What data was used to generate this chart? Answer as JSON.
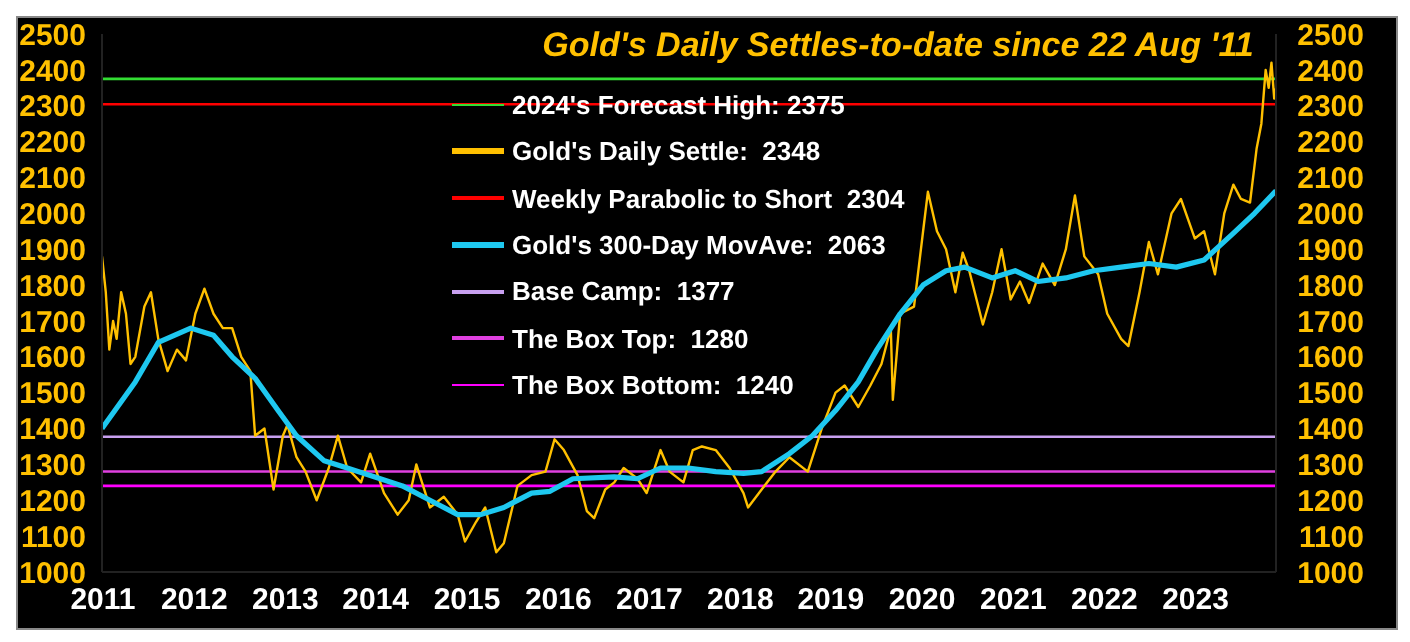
{
  "chart_data": {
    "type": "line",
    "title": "Gold's Daily Settles-to-date since 22 Aug '11",
    "xlim": [
      "2011-08-22",
      "2024-05-19"
    ],
    "xticks": [
      {
        "value": "2011-08-26",
        "label": "2011"
      },
      {
        "value": "2012-08-22",
        "label": "2012"
      },
      {
        "value": "2013-08-18",
        "label": "2013"
      },
      {
        "value": "2014-08-11",
        "label": "2014"
      },
      {
        "value": "2015-08-08",
        "label": "2015"
      },
      {
        "value": "2016-08-04",
        "label": "2016"
      },
      {
        "value": "2017-07-31",
        "label": "2017"
      },
      {
        "value": "2018-07-27",
        "label": "2018"
      },
      {
        "value": "2019-07-20",
        "label": "2019"
      },
      {
        "value": "2020-07-16",
        "label": "2020"
      },
      {
        "value": "2021-07-13",
        "label": "2021"
      },
      {
        "value": "2022-07-09",
        "label": "2022"
      },
      {
        "value": "2023-07-05",
        "label": "2023"
      }
    ],
    "ylim": [
      1000,
      2500
    ],
    "yticks": [
      1000,
      1100,
      1200,
      1300,
      1400,
      1500,
      1600,
      1700,
      1800,
      1900,
      2000,
      2100,
      2200,
      2300,
      2400,
      2500
    ],
    "y2lim": [
      1000,
      2500
    ],
    "y2ticks": [
      1000,
      1100,
      1200,
      1300,
      1400,
      1500,
      1600,
      1700,
      1800,
      1900,
      2000,
      2100,
      2200,
      2300,
      2400,
      2500
    ],
    "legend": "top",
    "grid": false,
    "series": [
      {
        "name": "Gold's Daily Settle:  2348",
        "color": "#ffc000",
        "x": [
          "2011-08-22",
          "2011-09-06",
          "2011-09-20",
          "2011-10-05",
          "2011-10-19",
          "2011-11-06",
          "2011-11-25",
          "2011-12-13",
          "2012-01-01",
          "2012-02-06",
          "2012-03-03",
          "2012-04-01",
          "2012-05-08",
          "2012-06-14",
          "2012-07-20",
          "2012-08-26",
          "2012-10-01",
          "2012-11-06",
          "2012-12-13",
          "2013-01-19",
          "2013-02-24",
          "2013-04-01",
          "2013-04-20",
          "2013-05-27",
          "2013-07-02",
          "2013-08-08",
          "2013-08-26",
          "2013-10-01",
          "2013-11-06",
          "2013-12-20",
          "2014-02-06",
          "2014-03-14",
          "2014-04-20",
          "2014-06-14",
          "2014-07-20",
          "2014-09-13",
          "2014-11-06",
          "2014-12-20",
          "2015-01-19",
          "2015-03-14",
          "2015-05-08",
          "2015-07-02",
          "2015-07-31",
          "2015-09-13",
          "2015-10-19",
          "2015-12-02",
          "2016-01-01",
          "2016-02-24",
          "2016-04-20",
          "2016-06-14",
          "2016-07-20",
          "2016-08-26",
          "2016-10-19",
          "2016-11-25",
          "2016-12-24",
          "2017-02-06",
          "2017-03-14",
          "2017-04-20",
          "2017-06-14",
          "2017-07-20",
          "2017-09-13",
          "2017-10-19",
          "2017-12-13",
          "2018-01-19",
          "2018-02-24",
          "2018-04-20",
          "2018-06-14",
          "2018-08-08",
          "2018-08-26",
          "2018-10-19",
          "2018-12-13",
          "2019-02-06",
          "2019-04-20",
          "2019-06-14",
          "2019-08-08",
          "2019-09-13",
          "2019-11-06",
          "2019-12-24",
          "2020-02-06",
          "2020-03-14",
          "2020-03-22",
          "2020-04-20",
          "2020-06-14",
          "2020-07-20",
          "2020-08-08",
          "2020-09-13",
          "2020-10-19",
          "2020-11-25",
          "2020-12-24",
          "2021-01-19",
          "2021-03-14",
          "2021-04-20",
          "2021-05-27",
          "2021-07-02",
          "2021-08-08",
          "2021-09-13",
          "2021-11-06",
          "2021-12-24",
          "2022-02-06",
          "2022-03-14",
          "2022-04-20",
          "2022-06-14",
          "2022-07-20",
          "2022-09-13",
          "2022-10-12",
          "2022-11-25",
          "2023-01-01",
          "2023-02-06",
          "2023-04-01",
          "2023-05-08",
          "2023-07-02",
          "2023-08-08",
          "2023-09-20",
          "2023-10-27",
          "2023-12-02",
          "2024-01-01",
          "2024-02-06",
          "2024-03-03",
          "2024-03-22",
          "2024-04-08",
          "2024-04-20",
          "2024-05-01",
          "2024-05-12",
          "2024-05-19"
        ],
        "values": [
          1880,
          1780,
          1620,
          1700,
          1650,
          1780,
          1720,
          1580,
          1600,
          1740,
          1780,
          1650,
          1560,
          1620,
          1590,
          1720,
          1790,
          1720,
          1680,
          1680,
          1600,
          1560,
          1380,
          1400,
          1230,
          1380,
          1410,
          1320,
          1280,
          1200,
          1290,
          1380,
          1290,
          1250,
          1330,
          1220,
          1160,
          1200,
          1300,
          1180,
          1210,
          1160,
          1085,
          1140,
          1180,
          1055,
          1080,
          1240,
          1270,
          1280,
          1370,
          1340,
          1270,
          1170,
          1150,
          1230,
          1250,
          1290,
          1260,
          1220,
          1340,
          1280,
          1250,
          1340,
          1350,
          1340,
          1290,
          1220,
          1180,
          1230,
          1280,
          1320,
          1280,
          1400,
          1500,
          1520,
          1460,
          1520,
          1580,
          1680,
          1480,
          1720,
          1740,
          1950,
          2060,
          1950,
          1900,
          1780,
          1890,
          1840,
          1690,
          1780,
          1900,
          1760,
          1810,
          1750,
          1860,
          1800,
          1900,
          2050,
          1880,
          1830,
          1720,
          1650,
          1630,
          1780,
          1920,
          1830,
          2000,
          2040,
          1930,
          1950,
          1830,
          2000,
          2080,
          2040,
          2030,
          2180,
          2250,
          2400,
          2350,
          2420,
          2320,
          2348
        ]
      },
      {
        "name": "Gold's 300-Day MovAve:  2063",
        "color": "#1ec8f0",
        "x": [
          "2011-08-22",
          "2012-01-01",
          "2012-04-01",
          "2012-08-08",
          "2012-11-06",
          "2013-01-19",
          "2013-04-20",
          "2013-07-20",
          "2013-10-01",
          "2014-01-19",
          "2014-04-20",
          "2014-08-08",
          "2014-11-25",
          "2015-03-14",
          "2015-07-02",
          "2015-10-01",
          "2016-01-01",
          "2016-04-20",
          "2016-07-02",
          "2016-10-01",
          "2017-03-14",
          "2017-06-14",
          "2017-09-13",
          "2018-01-01",
          "2018-04-20",
          "2018-08-08",
          "2018-10-19",
          "2019-02-06",
          "2019-05-08",
          "2019-08-08",
          "2019-11-06",
          "2020-01-19",
          "2020-04-20",
          "2020-07-20",
          "2020-10-19",
          "2021-01-01",
          "2021-04-20",
          "2021-07-20",
          "2021-10-19",
          "2022-02-06",
          "2022-05-27",
          "2022-09-13",
          "2023-01-01",
          "2023-04-20",
          "2023-08-08",
          "2023-11-25",
          "2024-02-24",
          "2024-05-19"
        ],
        "values": [
          1400,
          1530,
          1640,
          1680,
          1660,
          1600,
          1540,
          1450,
          1380,
          1310,
          1290,
          1265,
          1240,
          1200,
          1160,
          1160,
          1180,
          1220,
          1225,
          1260,
          1265,
          1260,
          1290,
          1290,
          1280,
          1275,
          1280,
          1330,
          1380,
          1450,
          1530,
          1620,
          1720,
          1800,
          1840,
          1850,
          1820,
          1840,
          1810,
          1820,
          1840,
          1850,
          1860,
          1850,
          1870,
          1940,
          2000,
          2063
        ]
      }
    ],
    "ref_lines": [
      {
        "axis": "y",
        "value": 2375,
        "label": "2024's Forecast High: 2375",
        "color": "#33dd33"
      },
      {
        "axis": "y",
        "value": 2304,
        "label": "Weekly Parabolic to Short  2304",
        "color": "#ff0000"
      },
      {
        "axis": "y",
        "value": 1377,
        "label": "Base Camp:  1377",
        "color": "#c8a0f0"
      },
      {
        "axis": "y",
        "value": 1280,
        "label": "The Box Top:  1280",
        "color": "#e040e0"
      },
      {
        "axis": "y",
        "value": 1240,
        "label": "The Box Bottom:  1240",
        "color": "#ff00ff"
      }
    ]
  }
}
